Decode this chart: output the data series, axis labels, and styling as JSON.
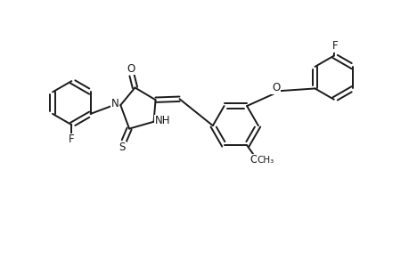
{
  "bg_color": "#ffffff",
  "line_color": "#1a1a1a",
  "lw": 1.4,
  "dbo": 0.055,
  "figsize": [
    4.6,
    3.0
  ],
  "dpi": 100,
  "xlim": [
    0,
    9.2
  ],
  "ylim": [
    0,
    6.0
  ]
}
